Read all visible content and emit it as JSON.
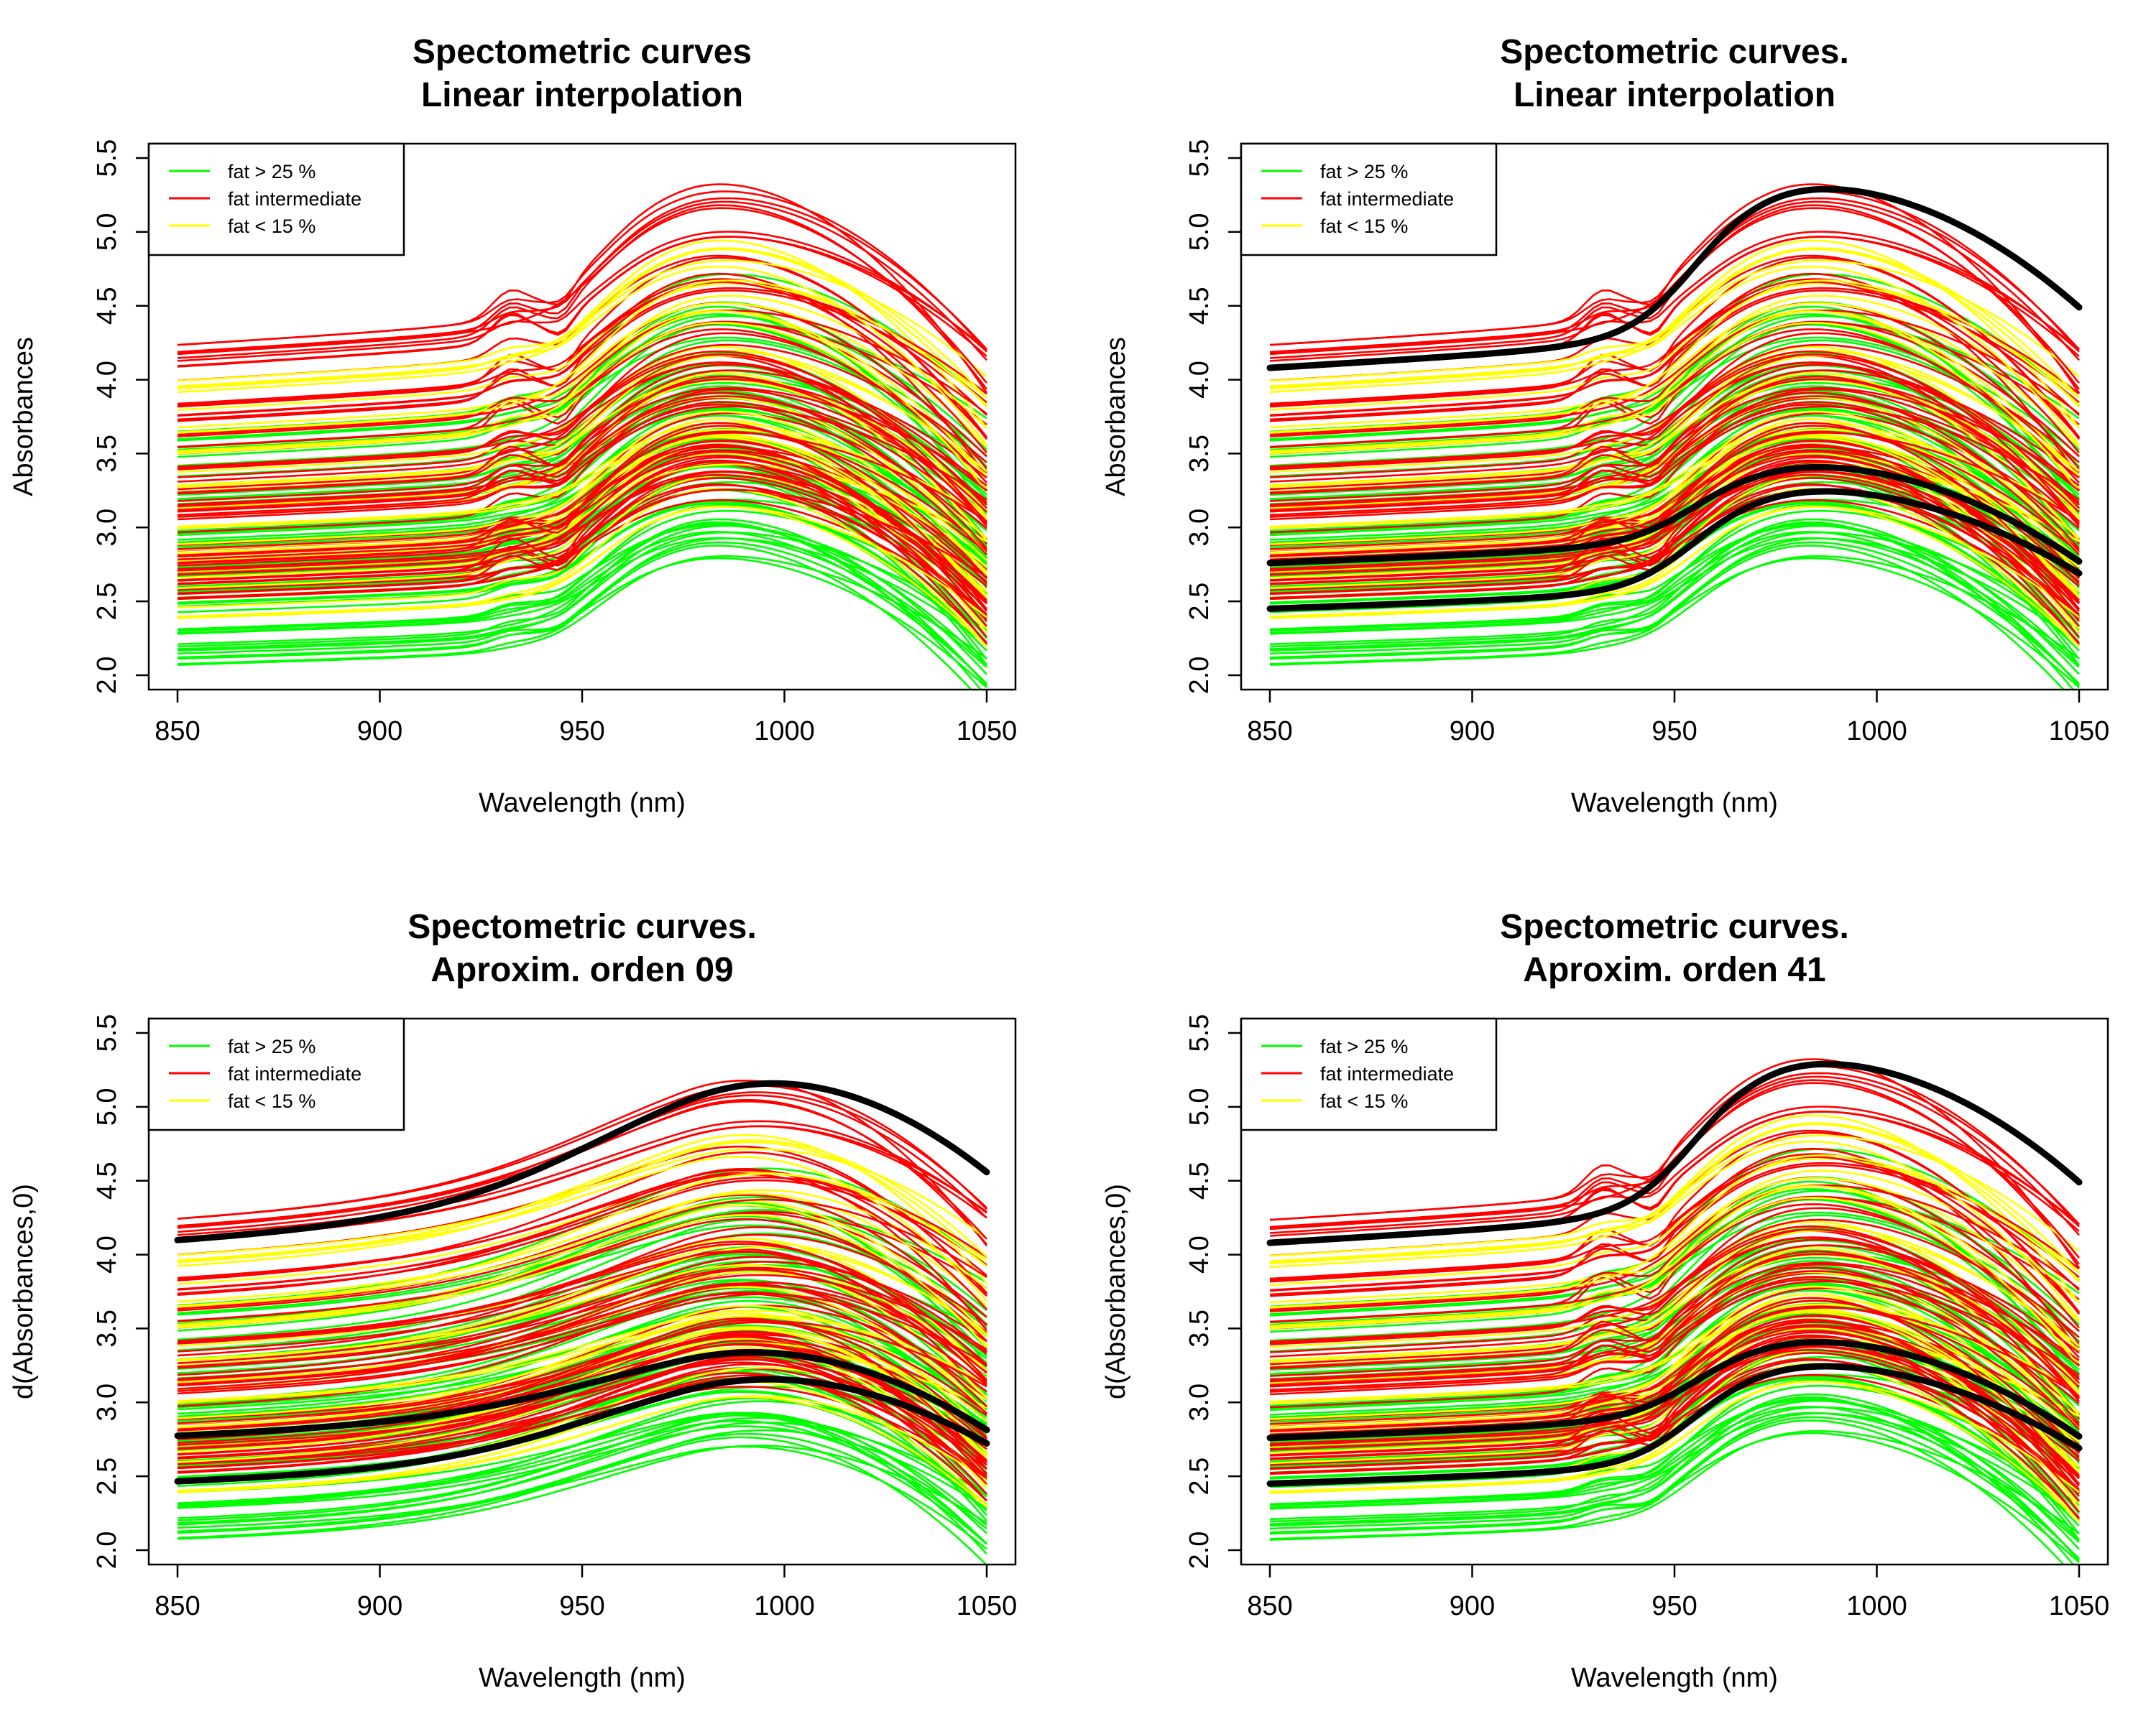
{
  "colors": {
    "group_high": "#00ff00",
    "group_mid": "#ff0000",
    "group_low": "#ffff00",
    "highlight": "#000000"
  },
  "chart_data": [
    {
      "type": "line",
      "title_lines": [
        "Spectometric curves",
        "Linear interpolation"
      ],
      "xlabel": "Wavelength (nm)",
      "ylabel": "Absorbances",
      "xlim": [
        850,
        1050
      ],
      "ylim": [
        2.0,
        5.5
      ],
      "x_ticks": [
        "850",
        "900",
        "950",
        "1000",
        "1050"
      ],
      "y_ticks": [
        "2.0",
        "2.5",
        "3.0",
        "3.5",
        "4.0",
        "4.5",
        "5.0",
        "5.5"
      ],
      "legend": {
        "position": "top-left",
        "entries": [
          {
            "label": "fat > 25 %",
            "color": "#00ff00"
          },
          {
            "label": "fat intermediate",
            "color": "#ff0000"
          },
          {
            "label": "fat < 15 %",
            "color": "#ffff00"
          }
        ]
      },
      "grid": false,
      "smoothing": "none",
      "highlighted_curves": []
    },
    {
      "type": "line",
      "title_lines": [
        "Spectometric curves.",
        "Linear interpolation"
      ],
      "xlabel": "Wavelength (nm)",
      "ylabel": "Absorbances",
      "xlim": [
        850,
        1050
      ],
      "ylim": [
        2.0,
        5.5
      ],
      "x_ticks": [
        "850",
        "900",
        "950",
        "1000",
        "1050"
      ],
      "y_ticks": [
        "2.0",
        "2.5",
        "3.0",
        "3.5",
        "4.0",
        "4.5",
        "5.0",
        "5.5"
      ],
      "legend": {
        "position": "top-left",
        "entries": [
          {
            "label": "fat > 25 %",
            "color": "#00ff00"
          },
          {
            "label": "fat intermediate",
            "color": "#ff0000"
          },
          {
            "label": "fat < 15 %",
            "color": "#ffff00"
          }
        ]
      },
      "grid": false,
      "smoothing": "none",
      "highlighted_curves": [
        {
          "start": 4.08,
          "peak": 5.31,
          "end": 4.49
        },
        {
          "start": 2.76,
          "peak": 3.42,
          "end": 2.77
        },
        {
          "start": 2.45,
          "peak": 3.26,
          "end": 2.69
        }
      ]
    },
    {
      "type": "line",
      "title_lines": [
        "Spectometric curves.",
        "Aproxim. orden 09"
      ],
      "xlabel": "Wavelength (nm)",
      "ylabel": "d(Absorbances,0)",
      "xlim": [
        850,
        1050
      ],
      "ylim": [
        2.0,
        5.5
      ],
      "x_ticks": [
        "850",
        "900",
        "950",
        "1000",
        "1050"
      ],
      "y_ticks": [
        "2.0",
        "2.5",
        "3.0",
        "3.5",
        "4.0",
        "4.5",
        "5.0",
        "5.5"
      ],
      "legend": {
        "position": "top-left",
        "entries": [
          {
            "label": "fat > 25 %",
            "color": "#00ff00"
          },
          {
            "label": "fat intermediate",
            "color": "#ff0000"
          },
          {
            "label": "fat < 15 %",
            "color": "#ffff00"
          }
        ]
      },
      "grid": false,
      "smoothing": "order 09",
      "highlighted_curves": [
        {
          "start": 4.09,
          "peak": 5.32,
          "end": 4.47
        },
        {
          "start": 2.77,
          "peak": 3.43,
          "end": 2.74
        },
        {
          "start": 2.46,
          "peak": 3.27,
          "end": 2.66
        }
      ]
    },
    {
      "type": "line",
      "title_lines": [
        "Spectometric curves.",
        "Aproxim. orden 41"
      ],
      "xlabel": "Wavelength (nm)",
      "ylabel": "d(Absorbances,0)",
      "xlim": [
        850,
        1050
      ],
      "ylim": [
        2.0,
        5.5
      ],
      "x_ticks": [
        "850",
        "900",
        "950",
        "1000",
        "1050"
      ],
      "y_ticks": [
        "2.0",
        "2.5",
        "3.0",
        "3.5",
        "4.0",
        "4.5",
        "5.0",
        "5.5"
      ],
      "legend": {
        "position": "top-left",
        "entries": [
          {
            "label": "fat > 25 %",
            "color": "#00ff00"
          },
          {
            "label": "fat intermediate",
            "color": "#ff0000"
          },
          {
            "label": "fat < 15 %",
            "color": "#ffff00"
          }
        ]
      },
      "grid": false,
      "smoothing": "order 41",
      "highlighted_curves": [
        {
          "start": 4.08,
          "peak": 5.31,
          "end": 4.49
        },
        {
          "start": 2.76,
          "peak": 3.42,
          "end": 2.77
        },
        {
          "start": 2.45,
          "peak": 3.26,
          "end": 2.69
        }
      ]
    }
  ]
}
